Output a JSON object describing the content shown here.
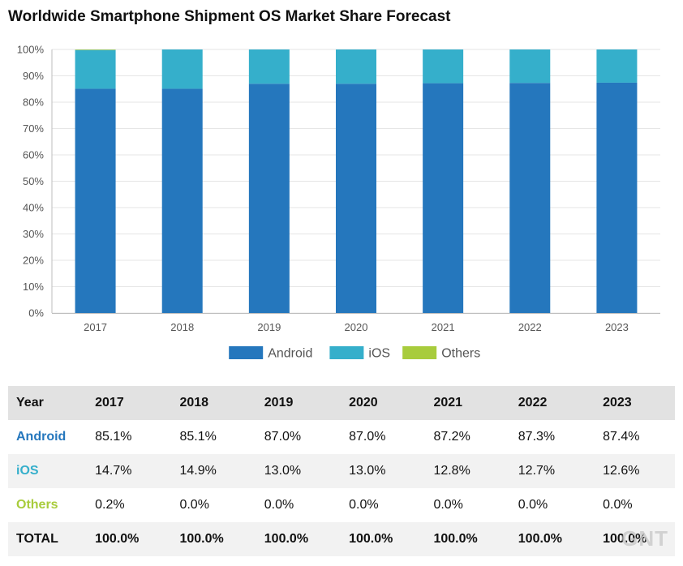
{
  "title": "Worldwide Smartphone Shipment OS Market Share Forecast",
  "chart_data": {
    "type": "bar",
    "stacked": true,
    "title": "Worldwide Smartphone Shipment OS Market Share Forecast",
    "categories": [
      "2017",
      "2018",
      "2019",
      "2020",
      "2021",
      "2022",
      "2023"
    ],
    "series": [
      {
        "name": "Android",
        "color": "#2577bd",
        "values": [
          85.1,
          85.1,
          87.0,
          87.0,
          87.2,
          87.3,
          87.4
        ]
      },
      {
        "name": "iOS",
        "color": "#35afcb",
        "values": [
          14.7,
          14.9,
          13.0,
          13.0,
          12.8,
          12.7,
          12.6
        ]
      },
      {
        "name": "Others",
        "color": "#a8cc3c",
        "values": [
          0.2,
          0.0,
          0.0,
          0.0,
          0.0,
          0.0,
          0.0
        ]
      }
    ],
    "y_ticks": [
      "0%",
      "10%",
      "20%",
      "30%",
      "40%",
      "50%",
      "60%",
      "70%",
      "80%",
      "90%",
      "100%"
    ],
    "ylim": [
      0,
      100
    ],
    "grid": true,
    "legend": "bottom"
  },
  "table": {
    "header": [
      "Year",
      "2017",
      "2018",
      "2019",
      "2020",
      "2021",
      "2022",
      "2023"
    ],
    "rows": [
      {
        "label": "Android",
        "color": "#2577bd",
        "cells": [
          "85.1%",
          "85.1%",
          "87.0%",
          "87.0%",
          "87.2%",
          "87.3%",
          "87.4%"
        ]
      },
      {
        "label": "iOS",
        "color": "#35afcb",
        "cells": [
          "14.7%",
          "14.9%",
          "13.0%",
          "13.0%",
          "12.8%",
          "12.7%",
          "12.6%"
        ]
      },
      {
        "label": "Others",
        "color": "#a8cc3c",
        "cells": [
          "0.2%",
          "0.0%",
          "0.0%",
          "0.0%",
          "0.0%",
          "0.0%",
          "0.0%"
        ]
      },
      {
        "label": "TOTAL",
        "color": "#111111",
        "cells": [
          "100.0%",
          "100.0%",
          "100.0%",
          "100.0%",
          "100.0%",
          "100.0%",
          "100.0%"
        ]
      }
    ]
  },
  "watermark": "GNT"
}
